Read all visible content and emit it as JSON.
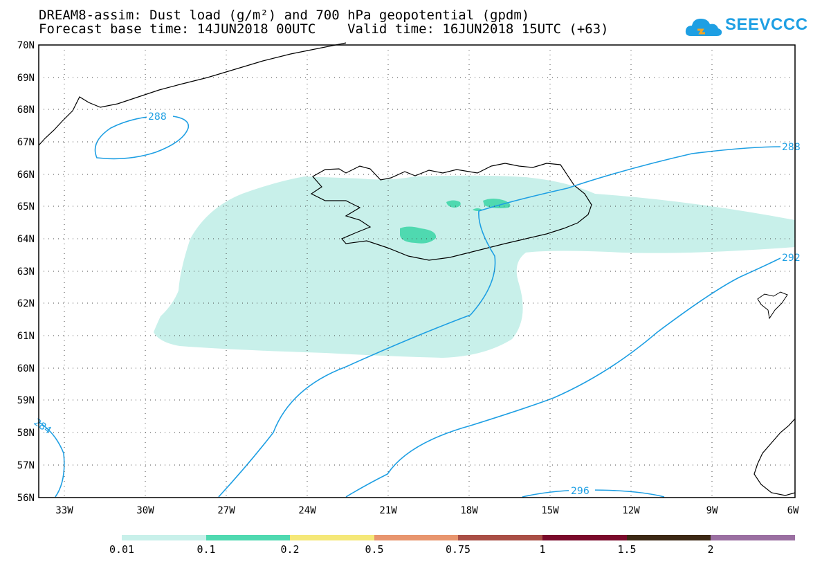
{
  "title": {
    "line1": "DREAM8-assim: Dust load (g/m²) and 700 hPa geopotential (gpdm)",
    "line2": "Forecast base time: 14JUN2018 00UTC    Valid time: 16JUN2018 15UTC (+63)"
  },
  "logo": {
    "text": "SEEVCCC",
    "color": "#1e9fe3"
  },
  "map": {
    "lat_ticks": [
      "70N",
      "69N",
      "68N",
      "67N",
      "66N",
      "65N",
      "64N",
      "63N",
      "62N",
      "61N",
      "60N",
      "59N",
      "58N",
      "57N",
      "56N"
    ],
    "lon_ticks": [
      "33W",
      "30W",
      "27W",
      "24W",
      "21W",
      "18W",
      "15W",
      "12W",
      "9W",
      "6W"
    ],
    "contour_labels": [
      "288",
      "288",
      "292",
      "296",
      "284"
    ],
    "colors": {
      "dust_low": "#c8f0ea",
      "dust_mid": "#4fd9b0",
      "contour": "#1e9fe3",
      "coast": "#000000"
    }
  },
  "legend": {
    "labels": [
      "0.01",
      "0.1",
      "0.2",
      "0.5",
      "0.75",
      "1",
      "1.5",
      "2"
    ],
    "colors": [
      "#c8f0ea",
      "#4fd9b0",
      "#f5e878",
      "#e8956e",
      "#a94e45",
      "#7a0a2b",
      "#3c2814",
      "#9a6fa1"
    ]
  }
}
